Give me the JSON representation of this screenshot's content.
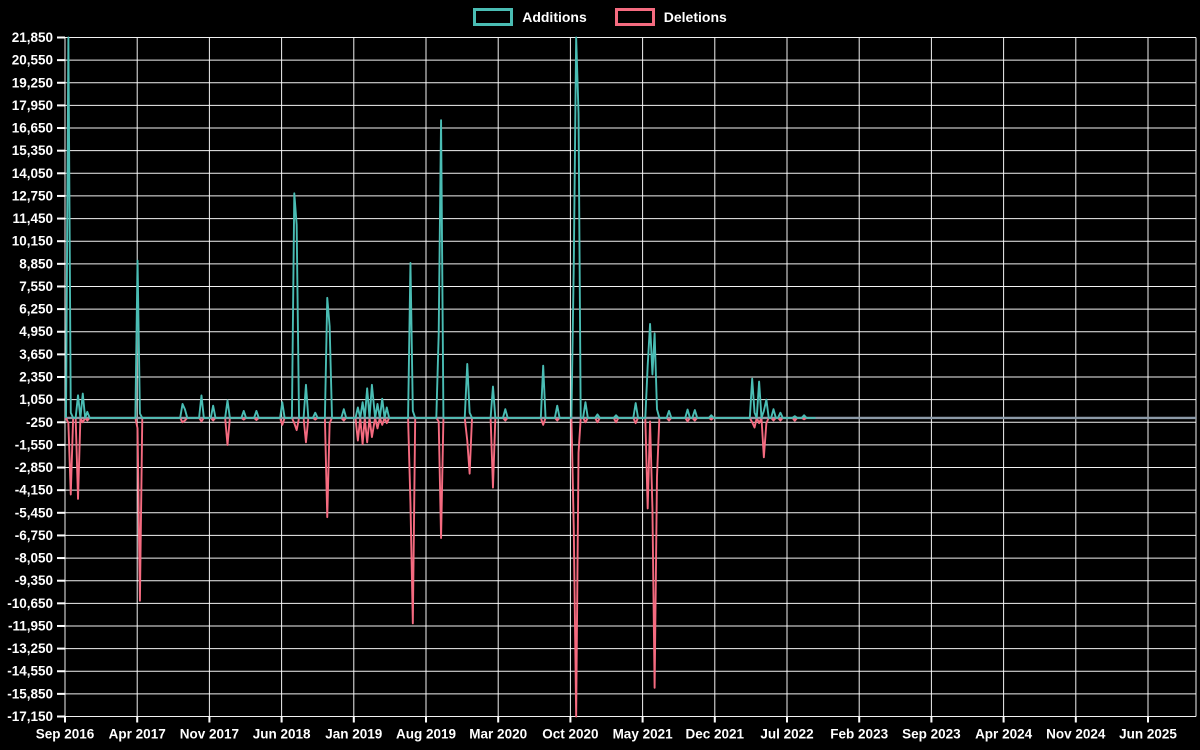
{
  "chart_data": {
    "type": "line",
    "title": "",
    "legend_items": [
      {
        "id": "additions",
        "label": "Additions"
      },
      {
        "id": "deletions",
        "label": "Deletions"
      }
    ],
    "colors": {
      "additions": "#4abdb4",
      "deletions": "#f56b80",
      "grid": "#ffffff",
      "zero_line": "#8c9aa8",
      "background": "#000000",
      "text": "#ffffff"
    },
    "x_axis": {
      "tick_labels": [
        "Sep 2016",
        "Apr 2017",
        "Nov 2017",
        "Jun 2018",
        "Jan 2019",
        "Aug 2019",
        "Mar 2020",
        "Oct 2020",
        "May 2021",
        "Dec 2021",
        "Jul 2022",
        "Feb 2023",
        "Sep 2023",
        "Apr 2024",
        "Nov 2024",
        "Jun 2025"
      ],
      "tick_interval_months": 7,
      "first_tick_date": "2016-09-01"
    },
    "y_axis": {
      "min": -17150,
      "max": 21850,
      "step": 1300,
      "tick_labels": [
        "21,850",
        "20,550",
        "19,250",
        "17,950",
        "16,650",
        "15,350",
        "14,050",
        "12,750",
        "11,450",
        "10,150",
        "8,850",
        "7,550",
        "6,250",
        "4,950",
        "3,650",
        "2,350",
        "1,050",
        "-250",
        "-1,550",
        "-2,850",
        "-4,150",
        "-5,450",
        "-6,750",
        "-8,050",
        "-9,350",
        "-10,650",
        "-11,950",
        "-13,250",
        "-14,550",
        "-15,850",
        "-17,150"
      ]
    },
    "series_window": {
      "first_week": "2016-09-04",
      "last_week": "2022-09-25",
      "default_additions": 0,
      "default_deletions": 0
    },
    "weekly_events": [
      {
        "week": "2016-09-11",
        "additions": 23000,
        "deletions": -300
      },
      {
        "week": "2016-09-18",
        "additions": 300,
        "deletions": -4400
      },
      {
        "week": "2016-10-09",
        "additions": 1300,
        "deletions": -4650
      },
      {
        "week": "2016-10-23",
        "additions": 1400,
        "deletions": -250
      },
      {
        "week": "2016-11-06",
        "additions": 350,
        "deletions": -150
      },
      {
        "week": "2017-04-02",
        "additions": 9040,
        "deletions": -600
      },
      {
        "week": "2017-04-09",
        "additions": 250,
        "deletions": -10500
      },
      {
        "week": "2017-08-13",
        "additions": 800,
        "deletions": -250
      },
      {
        "week": "2017-08-20",
        "additions": 500,
        "deletions": -150
      },
      {
        "week": "2017-10-08",
        "additions": 1290,
        "deletions": -200
      },
      {
        "week": "2017-11-12",
        "additions": 700,
        "deletions": -150
      },
      {
        "week": "2017-12-24",
        "additions": 1000,
        "deletions": -1550
      },
      {
        "week": "2018-02-11",
        "additions": 400,
        "deletions": -100
      },
      {
        "week": "2018-03-18",
        "additions": 400,
        "deletions": -120
      },
      {
        "week": "2018-06-03",
        "additions": 900,
        "deletions": -400
      },
      {
        "week": "2018-07-08",
        "additions": 12900,
        "deletions": -300
      },
      {
        "week": "2018-07-15",
        "additions": 11100,
        "deletions": -700
      },
      {
        "week": "2018-08-12",
        "additions": 1900,
        "deletions": -1400
      },
      {
        "week": "2018-09-09",
        "additions": 300,
        "deletions": -100
      },
      {
        "week": "2018-10-14",
        "additions": 6900,
        "deletions": -5700
      },
      {
        "week": "2018-10-21",
        "additions": 5270,
        "deletions": -300
      },
      {
        "week": "2018-12-02",
        "additions": 500,
        "deletions": -150
      },
      {
        "week": "2019-01-13",
        "additions": 600,
        "deletions": -1300
      },
      {
        "week": "2019-01-27",
        "additions": 900,
        "deletions": -1500
      },
      {
        "week": "2019-02-10",
        "additions": 1700,
        "deletions": -1400
      },
      {
        "week": "2019-02-24",
        "additions": 1900,
        "deletions": -1100
      },
      {
        "week": "2019-03-10",
        "additions": 800,
        "deletions": -600
      },
      {
        "week": "2019-03-24",
        "additions": 1100,
        "deletions": -400
      },
      {
        "week": "2019-04-07",
        "additions": 600,
        "deletions": -300
      },
      {
        "week": "2019-06-16",
        "additions": 8900,
        "deletions": -4900
      },
      {
        "week": "2019-06-23",
        "additions": 400,
        "deletions": -11800
      },
      {
        "week": "2019-09-08",
        "additions": 4800,
        "deletions": -200
      },
      {
        "week": "2019-09-15",
        "additions": 17100,
        "deletions": -6900
      },
      {
        "week": "2019-12-01",
        "additions": 3100,
        "deletions": -1300
      },
      {
        "week": "2019-12-08",
        "additions": 300,
        "deletions": -3200
      },
      {
        "week": "2020-02-16",
        "additions": 1800,
        "deletions": -4000
      },
      {
        "week": "2020-03-22",
        "additions": 500,
        "deletions": -150
      },
      {
        "week": "2020-07-12",
        "additions": 3000,
        "deletions": -400
      },
      {
        "week": "2020-08-23",
        "additions": 700,
        "deletions": -150
      },
      {
        "week": "2020-10-11",
        "additions": 8850,
        "deletions": -6400
      },
      {
        "week": "2020-10-18",
        "additions": 24000,
        "deletions": -18400
      },
      {
        "week": "2020-10-25",
        "additions": 17500,
        "deletions": -2000
      },
      {
        "week": "2020-11-15",
        "additions": 900,
        "deletions": -250
      },
      {
        "week": "2020-12-20",
        "additions": 200,
        "deletions": -250
      },
      {
        "week": "2021-02-14",
        "additions": 150,
        "deletions": -250
      },
      {
        "week": "2021-04-11",
        "additions": 850,
        "deletions": -300
      },
      {
        "week": "2021-05-16",
        "additions": 3000,
        "deletions": -5200
      },
      {
        "week": "2021-05-23",
        "additions": 5400,
        "deletions": -200
      },
      {
        "week": "2021-05-30",
        "additions": 2500,
        "deletions": -5200
      },
      {
        "week": "2021-06-06",
        "additions": 4850,
        "deletions": -15500
      },
      {
        "week": "2021-06-13",
        "additions": 500,
        "deletions": -3400
      },
      {
        "week": "2021-07-18",
        "additions": 400,
        "deletions": -150
      },
      {
        "week": "2021-09-12",
        "additions": 480,
        "deletions": -200
      },
      {
        "week": "2021-10-03",
        "additions": 450,
        "deletions": -150
      },
      {
        "week": "2021-11-21",
        "additions": 150,
        "deletions": -100
      },
      {
        "week": "2022-03-20",
        "additions": 2250,
        "deletions": -250
      },
      {
        "week": "2022-03-27",
        "additions": 300,
        "deletions": -550
      },
      {
        "week": "2022-04-10",
        "additions": 2090,
        "deletions": -300
      },
      {
        "week": "2022-04-24",
        "additions": 400,
        "deletions": -2260
      },
      {
        "week": "2022-05-01",
        "additions": 1050,
        "deletions": -300
      },
      {
        "week": "2022-05-22",
        "additions": 500,
        "deletions": -150
      },
      {
        "week": "2022-06-12",
        "additions": 300,
        "deletions": -150
      },
      {
        "week": "2022-07-24",
        "additions": 100,
        "deletions": -160
      },
      {
        "week": "2022-08-21",
        "additions": 150,
        "deletions": -80
      }
    ]
  }
}
